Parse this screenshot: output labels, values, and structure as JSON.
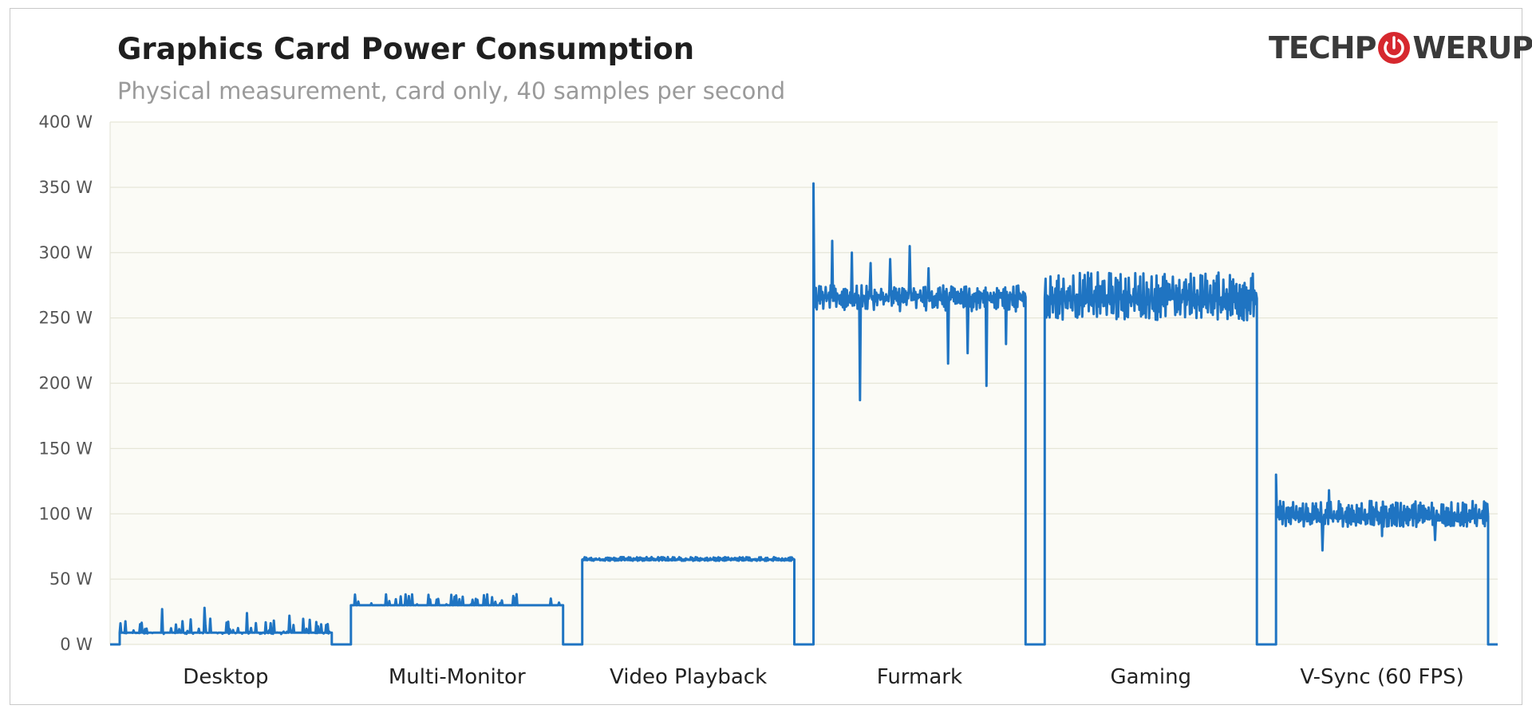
{
  "chart_data": {
    "type": "line",
    "title": "Graphics  Card Power Consumption",
    "subtitle": "Physical measurement, card only, 40 samples per second",
    "ylim": [
      0,
      400
    ],
    "y_ticks": [
      "0 W",
      "50 W",
      "100 W",
      "150 W",
      "200 W",
      "250 W",
      "300 W",
      "350 W",
      "400 W"
    ],
    "y_tick_values": [
      0,
      50,
      100,
      150,
      200,
      250,
      300,
      350,
      400
    ],
    "grid": true,
    "line_color": "#1f74c2",
    "categories": [
      "Desktop",
      "Multi-Monitor",
      "Video Playback",
      "Furmark",
      "Gaming",
      "V-Sync (60 FPS)"
    ],
    "segments": [
      {
        "name": "Desktop",
        "baseline": 9,
        "noise_low": 8,
        "noise_high": 20,
        "spikes": [
          27,
          28,
          24,
          22
        ]
      },
      {
        "name": "Multi-Monitor",
        "baseline": 30,
        "noise_low": 30,
        "noise_high": 39,
        "spikes": []
      },
      {
        "name": "Video Playback",
        "baseline": 65,
        "noise_low": 64,
        "noise_high": 67,
        "spikes": []
      },
      {
        "name": "Furmark",
        "baseline": 266,
        "noise_low": 255,
        "noise_high": 275,
        "peak": 353,
        "min": 187,
        "spikes": [
          309,
          300,
          292,
          295,
          305,
          288,
          215,
          223,
          198,
          230
        ]
      },
      {
        "name": "Gaming",
        "baseline": 265,
        "noise_low": 248,
        "noise_high": 285,
        "spikes": []
      },
      {
        "name": "V-Sync (60 FPS)",
        "baseline": 98,
        "noise_low": 90,
        "noise_high": 110,
        "peak": 130,
        "min": 72,
        "spikes": [
          118,
          83,
          80
        ]
      }
    ],
    "idle_between_tests": 0
  },
  "logo": {
    "text_left": "TECHP",
    "text_right": "WERUP",
    "ring_color": "#d6282e"
  }
}
